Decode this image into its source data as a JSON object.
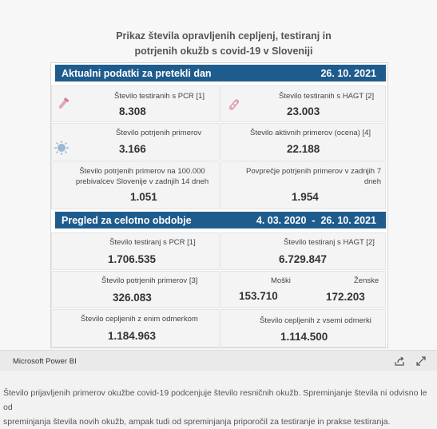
{
  "title_line1": "Prikaz števila opravljenih cepljenj, testiranj in",
  "title_line2": "potrjenih okužb s covid-19 v Sloveniji",
  "section1": {
    "label": "Aktualni podatki za pretekli dan",
    "date": "26. 10. 2021",
    "pcr_label": "Število testiranih s PCR [1]",
    "pcr_value": "8.308",
    "hagt_label": "Število testiranih s HAGT [2]",
    "hagt_value": "23.003",
    "confirmed_label": "Število potrjenih primerov",
    "confirmed_value": "3.166",
    "active_label": "Število aktivnih primerov (ocena) [4]",
    "active_value": "22.188",
    "per100k_label_1": "Število potrjenih primerov na 100.000",
    "per100k_label_2": "prebivalcev Slovenije v zadnjih 14 dneh",
    "per100k_value": "1.051",
    "avg7_label_1": "Povprečje potrjenih primerov v zadnjih 7",
    "avg7_label_2": "dneh",
    "avg7_value": "1.954"
  },
  "section2": {
    "label": "Pregled za celotno obdobje",
    "date_range": "4. 03. 2020  -  26. 10. 2021",
    "pcr_label": "Število testiranj s PCR [1]",
    "pcr_value": "1.706.535",
    "hagt_label": "Število testiranj s HAGT [2]",
    "hagt_value": "6.729.847",
    "confirmed_label": "Število potrjenih primerov [3]",
    "confirmed_value": "326.083",
    "men_label": "Moški",
    "men_value": "153.710",
    "women_label": "Ženske",
    "women_value": "172.203",
    "one_dose_label": "Število cepljenih z enim odmerkom",
    "one_dose_value": "1.184.963",
    "all_doses_label": "Število cepljenih z vsemi odmerki",
    "all_doses_value": "1.114.500"
  },
  "footer": {
    "brand": "Microsoft Power BI",
    "icons": [
      "share-icon",
      "expand-icon"
    ]
  },
  "description_line1": "Število prijavljenih primerov okužbe covid-19 podcenjuje število resničnih okužb. Spreminjanje števila ni odvisno le od",
  "description_line2": "spreminjanja števila novih okužb, ampak tudi od spreminjanja priporočil za testiranje in prakse testiranja.",
  "colors": {
    "header_bar": "#1f5c8e",
    "icon_pink": "#e3a6bc",
    "icon_blue": "#9bb8d4"
  }
}
